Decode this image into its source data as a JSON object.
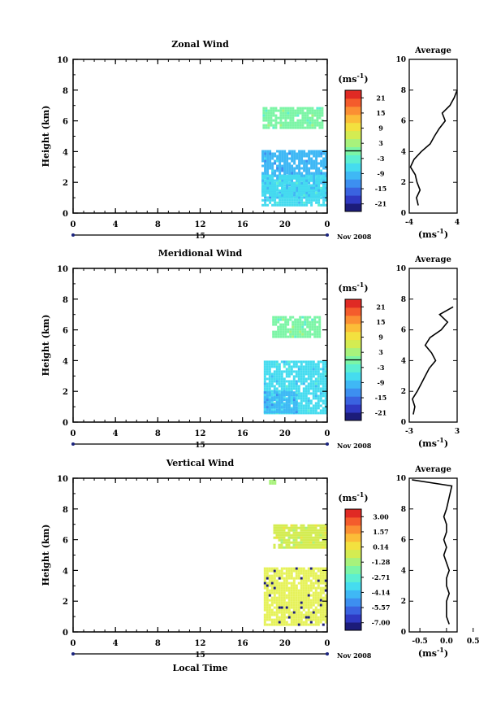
{
  "chart_data": [
    {
      "type": "heatmap",
      "title": "Zonal Wind",
      "ylabel": "Height (km)",
      "ylim": [
        0,
        10
      ],
      "y_ticks": [
        0,
        2,
        4,
        6,
        8,
        10
      ],
      "xlim": [
        0,
        24
      ],
      "x_tick_labels": [
        "0",
        "4",
        "8",
        "12",
        "16",
        "20",
        "0"
      ],
      "date_label": "15",
      "month_label": "Nov 2008",
      "colorbar": {
        "unit_label": "(ms-1)",
        "tick_labels": [
          "21",
          "15",
          "9",
          "3",
          "-3",
          "-9",
          "-15",
          "-21"
        ],
        "colors": [
          "#1c1c7a",
          "#2f39c2",
          "#3a63e0",
          "#3d8ff0",
          "#3fb8f5",
          "#45dcef",
          "#5cefd1",
          "#7cf5a6",
          "#a8f27c",
          "#d4ec52",
          "#f3e13f",
          "#fbbd38",
          "#fb8f33",
          "#f45c2c",
          "#e02a24"
        ]
      },
      "data_blocks": [
        {
          "x": [
            17.9,
            23.5
          ],
          "y": [
            5.5,
            6.9
          ],
          "color": "#7cf5a6"
        },
        {
          "x": [
            17.8,
            23.8
          ],
          "y": [
            1.0,
            4.1
          ],
          "color": "#3fb8f5"
        },
        {
          "x": [
            17.8,
            23.8
          ],
          "y": [
            0.5,
            2.5
          ],
          "color": "#45dcef"
        }
      ],
      "average": {
        "title": "Average",
        "xlabel": "(ms-1)",
        "xlim": [
          -4,
          4
        ],
        "x_ticks": [
          -4,
          4
        ],
        "height": [
          0.5,
          1.0,
          1.5,
          2.0,
          2.5,
          3.0,
          3.5,
          4.0,
          4.5,
          5.0,
          5.5,
          6.0,
          6.5,
          7.0,
          7.5,
          8.0
        ],
        "value": [
          -2.5,
          -2.8,
          -2.2,
          -2.7,
          -3.0,
          -3.8,
          -3.2,
          -2.0,
          -0.5,
          0.2,
          1.0,
          2.0,
          1.5,
          2.8,
          3.5,
          4.0
        ]
      }
    },
    {
      "type": "heatmap",
      "title": "Meridional Wind",
      "ylabel": "Height (km)",
      "ylim": [
        0,
        10
      ],
      "y_ticks": [
        0,
        2,
        4,
        6,
        8,
        10
      ],
      "xlim": [
        0,
        24
      ],
      "x_tick_labels": [
        "0",
        "4",
        "8",
        "12",
        "16",
        "20",
        "0"
      ],
      "date_label": "15",
      "month_label": "Nov 2008",
      "colorbar": {
        "unit_label": "(ms-1)",
        "tick_labels": [
          "21",
          "15",
          "9",
          "3",
          "-3",
          "-9",
          "-15",
          "-21"
        ],
        "colors": [
          "#1c1c7a",
          "#2f39c2",
          "#3a63e0",
          "#3d8ff0",
          "#3fb8f5",
          "#45dcef",
          "#5cefd1",
          "#7cf5a6",
          "#a8f27c",
          "#d4ec52",
          "#f3e13f",
          "#fbbd38",
          "#fb8f33",
          "#f45c2c",
          "#e02a24"
        ]
      },
      "data_blocks": [
        {
          "x": [
            18.8,
            23.2
          ],
          "y": [
            5.5,
            6.9
          ],
          "color": "#7cf5a6"
        },
        {
          "x": [
            18.0,
            23.8
          ],
          "y": [
            0.6,
            4.0
          ],
          "color": "#45dcef"
        },
        {
          "x": [
            18.0,
            21.0
          ],
          "y": [
            0.6,
            2.0
          ],
          "color": "#3fb8f5"
        }
      ],
      "average": {
        "title": "Average",
        "xlabel": "(ms-1)",
        "xlim": [
          -3,
          3
        ],
        "x_ticks": [
          -3,
          3
        ],
        "height": [
          0.5,
          1.0,
          1.5,
          2.0,
          2.5,
          3.0,
          3.5,
          4.0,
          4.5,
          5.0,
          5.5,
          6.0,
          6.5,
          7.0,
          7.5
        ],
        "value": [
          -2.5,
          -2.3,
          -2.6,
          -2.0,
          -1.5,
          -1.0,
          -0.5,
          0.3,
          -0.2,
          -1.0,
          -0.4,
          1.0,
          1.8,
          0.8,
          2.5
        ]
      }
    },
    {
      "type": "heatmap",
      "title": "Vertical Wind",
      "ylabel": "Height (km)",
      "xlabel": "Local Time",
      "ylim": [
        0,
        10
      ],
      "y_ticks": [
        0,
        2,
        4,
        6,
        8,
        10
      ],
      "xlim": [
        0,
        24
      ],
      "x_tick_labels": [
        "0",
        "4",
        "8",
        "12",
        "16",
        "20",
        "0"
      ],
      "date_label": "15",
      "month_label": "Nov 2008",
      "colorbar": {
        "unit_label": "(ms-1)",
        "tick_labels": [
          "3.00",
          "1.57",
          "0.14",
          "-1.28",
          "-2.71",
          "-4.14",
          "-5.57",
          "-7.00"
        ],
        "colors": [
          "#1c1c7a",
          "#2f39c2",
          "#3a63e0",
          "#3d8ff0",
          "#3fb8f5",
          "#45dcef",
          "#5cefd1",
          "#7cf5a6",
          "#a8f27c",
          "#d4ec52",
          "#f3e13f",
          "#fbbd38",
          "#fb8f33",
          "#f45c2c",
          "#e02a24"
        ]
      },
      "data_blocks": [
        {
          "x": [
            18.9,
            23.8
          ],
          "y": [
            5.5,
            7.0
          ],
          "color": "#d4ec52"
        },
        {
          "x": [
            18.0,
            23.8
          ],
          "y": [
            0.4,
            4.2
          ],
          "color": "#e6f25a"
        },
        {
          "x": [
            18.5,
            19.0
          ],
          "y": [
            9.7,
            9.9
          ],
          "color": "#a8f27c"
        }
      ],
      "average": {
        "title": "Average",
        "xlabel": "(ms-1)",
        "xlim": [
          -0.7,
          0.2
        ],
        "x_tick_labels": [
          "-0.5",
          "0.0",
          "0.5"
        ],
        "x_ticks": [
          -0.5,
          0.0,
          0.5
        ],
        "height": [
          0.5,
          1.0,
          1.5,
          2.0,
          2.5,
          3.0,
          3.5,
          4.0,
          4.5,
          5.0,
          5.5,
          6.0,
          6.5,
          7.0,
          7.5,
          8.0,
          9.5,
          9.9
        ],
        "value": [
          0.05,
          0.0,
          0.0,
          0.0,
          0.05,
          0.0,
          0.0,
          0.05,
          0.0,
          -0.05,
          0.0,
          -0.05,
          0.0,
          0.0,
          -0.05,
          0.0,
          0.1,
          -0.65
        ]
      }
    }
  ]
}
